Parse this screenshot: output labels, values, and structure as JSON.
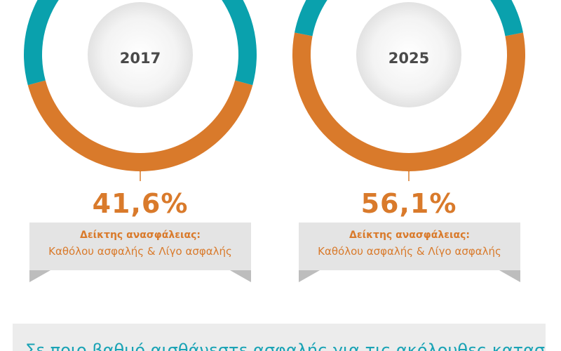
{
  "chart_data": [
    {
      "type": "pie",
      "variant": "donut",
      "center_label": "2017",
      "slices": [
        {
          "name": "",
          "value": 41.6,
          "color": "#d97a2b"
        },
        {
          "name": "",
          "value": 58.4,
          "color": "#0aa1ad"
        }
      ],
      "value_label": "41,6%",
      "annotation_title": "Δείκτης ανασφάλειας:",
      "annotation_text": "Καθόλου ασφαλής & Λίγο ασφαλής"
    },
    {
      "type": "pie",
      "variant": "donut",
      "center_label": "2025",
      "slices": [
        {
          "name": "",
          "value": 56.1,
          "color": "#d97a2b"
        },
        {
          "name": "",
          "value": 43.9,
          "color": "#0aa1ad"
        }
      ],
      "value_label": "56,1%",
      "annotation_title": "Δείκτης ανασφάλειας:",
      "annotation_text": "Καθόλου ασφαλής & Λίγο ασφαλής"
    }
  ],
  "bottom_question": "Σε ποιο βαθμό αισθάνεστε ασφαλής για τις ακόλουθες καταστάσεις"
}
